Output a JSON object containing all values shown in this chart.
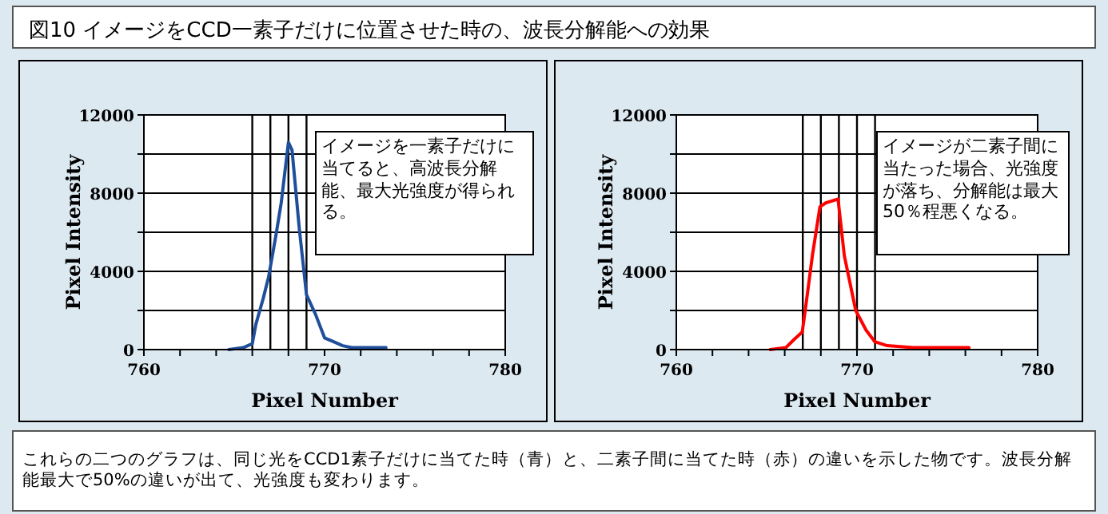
{
  "chart_data": [
    {
      "type": "line",
      "title": "図10 イメージをCCD一素子だけに位置させた時の、波長分解能への効果",
      "xlabel": "Pixel Number",
      "ylabel": "Pixel Intensity",
      "xlim": [
        760,
        780
      ],
      "xticks": [
        760,
        {
          "value": 762,
          "label": null
        },
        {
          "value": 764,
          "label": null
        },
        {
          "value": 766,
          "label": null
        },
        {
          "value": 768,
          "label": null
        },
        770,
        {
          "value": 772,
          "label": null
        },
        {
          "value": 774,
          "label": null
        },
        {
          "value": 776,
          "label": null
        },
        {
          "value": 778,
          "label": null
        },
        780
      ],
      "ylim": [
        0,
        12000
      ],
      "yticks": [
        0,
        {
          "value": 2000,
          "label": null
        },
        4000,
        {
          "value": 6000,
          "label": null
        },
        8000,
        {
          "value": 10000,
          "label": null
        },
        12000
      ],
      "grid": "y",
      "ref_lines": [
        {
          "axis": "x",
          "value": 766,
          "color": "#000000"
        },
        {
          "axis": "x",
          "value": 767,
          "color": "#000000"
        },
        {
          "axis": "x",
          "value": 768,
          "color": "#000000"
        },
        {
          "axis": "x",
          "value": 769,
          "color": "#000000"
        }
      ],
      "annotations": [
        "イメージを一素子だけに当てると、高波長分解能、最大光強度が得られる。"
      ],
      "series": [
        {
          "color": "#1f4e9a",
          "x": [
            764.7,
            765.5,
            766.0,
            766.2,
            766.6,
            766.9,
            767.3,
            767.6,
            768.0,
            768.2,
            768.6,
            769.0,
            769.5,
            770.0,
            770.5,
            771.0,
            771.5,
            773.4
          ],
          "values": [
            0,
            100,
            300,
            1300,
            2600,
            3700,
            5800,
            7500,
            10600,
            10200,
            6200,
            2800,
            1800,
            600,
            400,
            200,
            100,
            100
          ]
        }
      ]
    },
    {
      "type": "line",
      "xlabel": "Pixel Number",
      "ylabel": "Pixel Intensity",
      "xlim": [
        760,
        780
      ],
      "xticks": [
        760,
        {
          "value": 762,
          "label": null
        },
        {
          "value": 764,
          "label": null
        },
        {
          "value": 766,
          "label": null
        },
        {
          "value": 768,
          "label": null
        },
        770,
        {
          "value": 772,
          "label": null
        },
        {
          "value": 774,
          "label": null
        },
        {
          "value": 776,
          "label": null
        },
        {
          "value": 778,
          "label": null
        },
        780
      ],
      "ylim": [
        0,
        12000
      ],
      "yticks": [
        0,
        {
          "value": 2000,
          "label": null
        },
        4000,
        {
          "value": 6000,
          "label": null
        },
        8000,
        {
          "value": 10000,
          "label": null
        },
        12000
      ],
      "grid": "y",
      "ref_lines": [
        {
          "axis": "x",
          "value": 767,
          "color": "#000000"
        },
        {
          "axis": "x",
          "value": 768,
          "color": "#000000"
        },
        {
          "axis": "x",
          "value": 769,
          "color": "#000000"
        },
        {
          "axis": "x",
          "value": 770,
          "color": "#000000"
        },
        {
          "axis": "x",
          "value": 771,
          "color": "#000000"
        }
      ],
      "annotations": [
        "イメージが二素子間に当たった場合、光強度が落ち、分解能は最大50％程悪くなる。",
        "これらの二つのグラフは、同じ光をCCD1素子だけに当てた時（青）と、二素子間に当てた時（赤）の違いを示した物です。波長分解能最大で50%の違いが出て、光強度も変わります。"
      ],
      "series": [
        {
          "color": "#ff0000",
          "x": [
            765.2,
            766.06,
            766.5,
            766.97,
            767.15,
            767.53,
            767.95,
            768.27,
            768.95,
            769.3,
            769.93,
            770.5,
            770.99,
            771.67,
            773.1,
            776.2
          ],
          "values": [
            0,
            100,
            500,
            900,
            2100,
            4800,
            7300,
            7500,
            7700,
            4800,
            2000,
            1000,
            400,
            200,
            100,
            100
          ]
        }
      ]
    }
  ]
}
